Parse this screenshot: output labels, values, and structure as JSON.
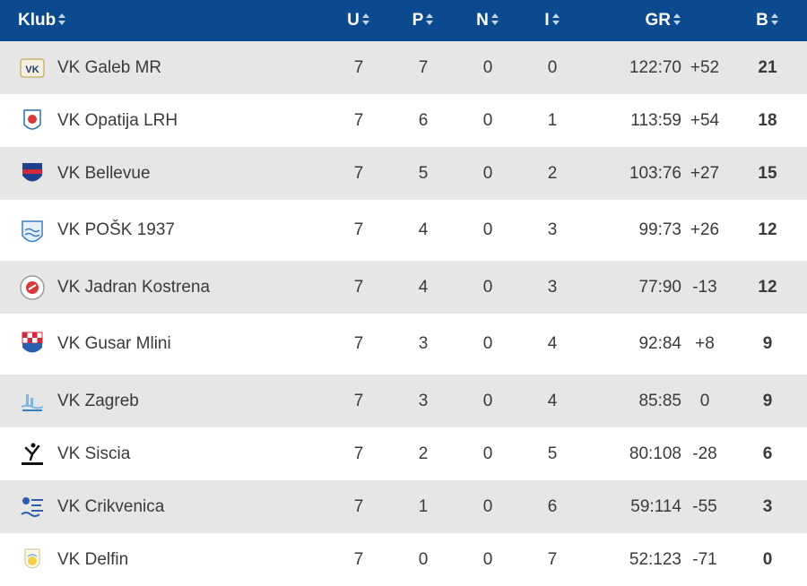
{
  "columns": {
    "club": "Klub",
    "played": "U",
    "won": "P",
    "drawn": "N",
    "lost": "I",
    "goals": "GR",
    "diff": "",
    "points": "B"
  },
  "colors": {
    "header_bg": "#0b4a8f",
    "row_odd": "#e6e6e6",
    "row_even": "#ffffff"
  },
  "rows": [
    {
      "logo": "vk-galeb-mr-logo",
      "name": "VK Galeb MR",
      "u": "7",
      "p": "7",
      "n": "0",
      "i": "0",
      "gr": "122:70",
      "diff": "+52",
      "b": "21"
    },
    {
      "logo": "vk-opatija-lrh-logo",
      "name": "VK Opatija LRH",
      "u": "7",
      "p": "6",
      "n": "0",
      "i": "1",
      "gr": "113:59",
      "diff": "+54",
      "b": "18"
    },
    {
      "logo": "vk-bellevue-logo",
      "name": "VK Bellevue",
      "u": "7",
      "p": "5",
      "n": "0",
      "i": "2",
      "gr": "103:76",
      "diff": "+27",
      "b": "15"
    },
    {
      "logo": "vk-posk-logo",
      "name": "VK POŠK 1937",
      "u": "7",
      "p": "4",
      "n": "0",
      "i": "3",
      "gr": "99:73",
      "diff": "+26",
      "b": "12"
    },
    {
      "logo": "vk-jadran-kostrena-logo",
      "name": "VK Jadran Kostrena",
      "u": "7",
      "p": "4",
      "n": "0",
      "i": "3",
      "gr": "77:90",
      "diff": "-13",
      "b": "12"
    },
    {
      "logo": "vk-gusar-mlini-logo",
      "name": "VK Gusar Mlini",
      "u": "7",
      "p": "3",
      "n": "0",
      "i": "4",
      "gr": "92:84",
      "diff": "+8",
      "b": "9"
    },
    {
      "logo": "vk-zagreb-logo",
      "name": "VK Zagreb",
      "u": "7",
      "p": "3",
      "n": "0",
      "i": "4",
      "gr": "85:85",
      "diff": "0",
      "b": "9"
    },
    {
      "logo": "vk-siscia-logo",
      "name": "VK Siscia",
      "u": "7",
      "p": "2",
      "n": "0",
      "i": "5",
      "gr": "80:108",
      "diff": "-28",
      "b": "6"
    },
    {
      "logo": "vk-crikvenica-logo",
      "name": "VK Crikvenica",
      "u": "7",
      "p": "1",
      "n": "0",
      "i": "6",
      "gr": "59:114",
      "diff": "-55",
      "b": "3"
    },
    {
      "logo": "vk-delfin-logo",
      "name": "VK Delfin",
      "u": "7",
      "p": "0",
      "n": "0",
      "i": "7",
      "gr": "52:123",
      "diff": "-71",
      "b": "0"
    }
  ]
}
